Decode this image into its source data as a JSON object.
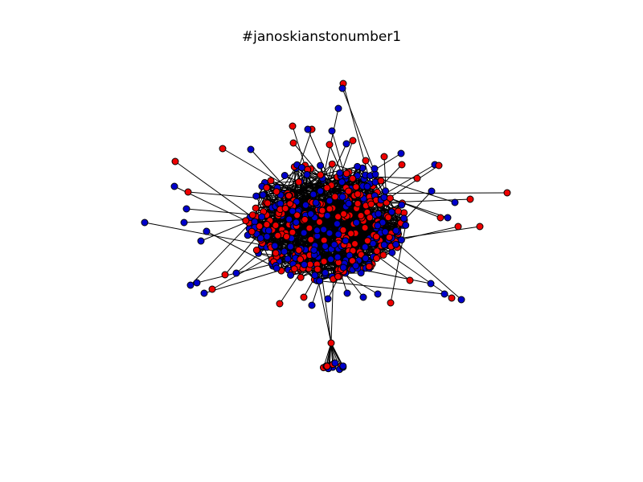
{
  "title": "#janoskianstonumber1",
  "node_colors": {
    "red": "#ee0000",
    "blue": "#0000cc"
  },
  "edge_color": "#000000"
}
